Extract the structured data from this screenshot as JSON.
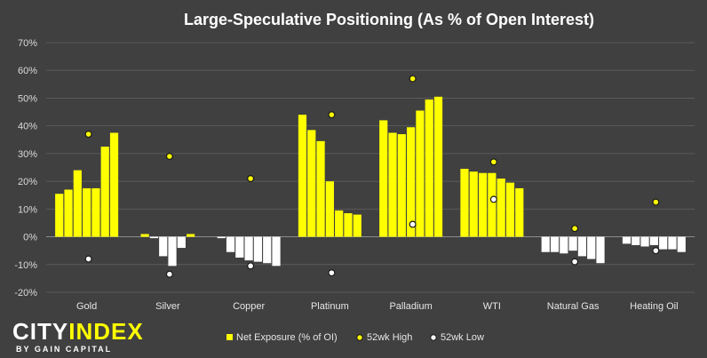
{
  "chart_data": {
    "type": "bar",
    "title": "Large-Speculative Positioning (As % of Open Interest)",
    "ylim": [
      -20,
      70
    ],
    "yticks": [
      "-20%",
      "-10%",
      "0%",
      "10%",
      "20%",
      "30%",
      "40%",
      "50%",
      "60%",
      "70%"
    ],
    "ytick_values": [
      -20,
      -10,
      0,
      10,
      20,
      30,
      40,
      50,
      60,
      70
    ],
    "grid": true,
    "legend_position": "bottom",
    "categories": [
      "Gold",
      "Silver",
      "Copper",
      "Platinum",
      "Palladium",
      "WTI",
      "Natural Gas",
      "Heating Oil"
    ],
    "series": [
      {
        "name": "Net Exposure (% of OI)",
        "kind": "bar",
        "color": "#ffff00",
        "values": [
          [
            15.5,
            17,
            24,
            17.5,
            17.5,
            32.5,
            37.5
          ],
          [
            1,
            -0.5,
            -7,
            -10.5,
            -4,
            1
          ],
          [
            -0.5,
            -5.5,
            -7.5,
            -8.5,
            -9,
            -9.5,
            -10.5
          ],
          [
            44,
            38.5,
            34.5,
            20,
            9.5,
            8.5,
            8
          ],
          [
            42,
            37.5,
            37,
            39.5,
            45.5,
            49.5,
            50.5
          ],
          [
            24.5,
            23.5,
            23,
            23,
            21,
            19.5,
            17.5
          ],
          [
            -5.5,
            -5.5,
            -6,
            -5,
            -7,
            -8,
            -9.5
          ],
          [
            -2.5,
            -3,
            -3.5,
            -3,
            -4.5,
            -4.5,
            -5.5
          ]
        ]
      },
      {
        "name": "52wk High",
        "kind": "marker",
        "color": "#ffff00",
        "values": [
          37,
          29,
          21,
          44,
          57,
          27,
          3,
          12.5
        ]
      },
      {
        "name": "52wk Low",
        "kind": "marker",
        "color": "#ffffff",
        "values": [
          -8,
          -13.5,
          -10.5,
          -13,
          4.5,
          13.5,
          -9,
          -5
        ]
      }
    ]
  },
  "logo": {
    "line1_a": "CITY",
    "line1_b": "INDEX",
    "line2": "BY GAIN CAPITAL"
  },
  "colors": {
    "background": "#404040",
    "gridline": "#5a5a5a",
    "accent": "#ffff00",
    "low_marker": "#ffffff"
  }
}
